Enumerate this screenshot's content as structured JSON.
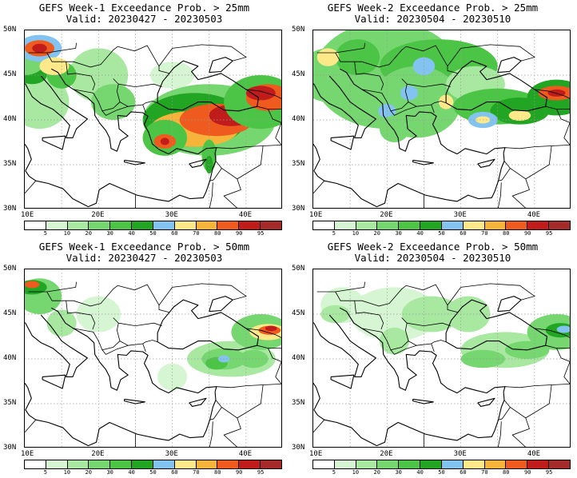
{
  "colors": {
    "scale": [
      "#ffffff",
      "#d6f5d2",
      "#a8e8a1",
      "#76d670",
      "#4cc445",
      "#21a523",
      "#82c3ef",
      "#fde98a",
      "#f7b43a",
      "#ef5a1e",
      "#c11c1c",
      "#a52a2a"
    ],
    "levels": [
      "5",
      "10",
      "20",
      "30",
      "40",
      "50",
      "60",
      "70",
      "80",
      "90",
      "95"
    ]
  },
  "axes": {
    "lat_labels": [
      "50N",
      "45N",
      "40N",
      "35N",
      "30N"
    ],
    "lon_labels": [
      "10E",
      "20E",
      "30E",
      "40E"
    ]
  },
  "panels": [
    {
      "title": "GEFS Week-1 Exceedance Prob. > 25mm",
      "valid": "Valid: 20230427 - 20230503"
    },
    {
      "title": "GEFS Week-2 Exceedance Prob. > 25mm",
      "valid": "Valid: 20230504 - 20230510"
    },
    {
      "title": "GEFS Week-1 Exceedance Prob. > 50mm",
      "valid": "Valid: 20230427 - 20230503"
    },
    {
      "title": "GEFS Week-2 Exceedance Prob. > 50mm",
      "valid": "Valid: 20230504 - 20230510"
    }
  ]
}
